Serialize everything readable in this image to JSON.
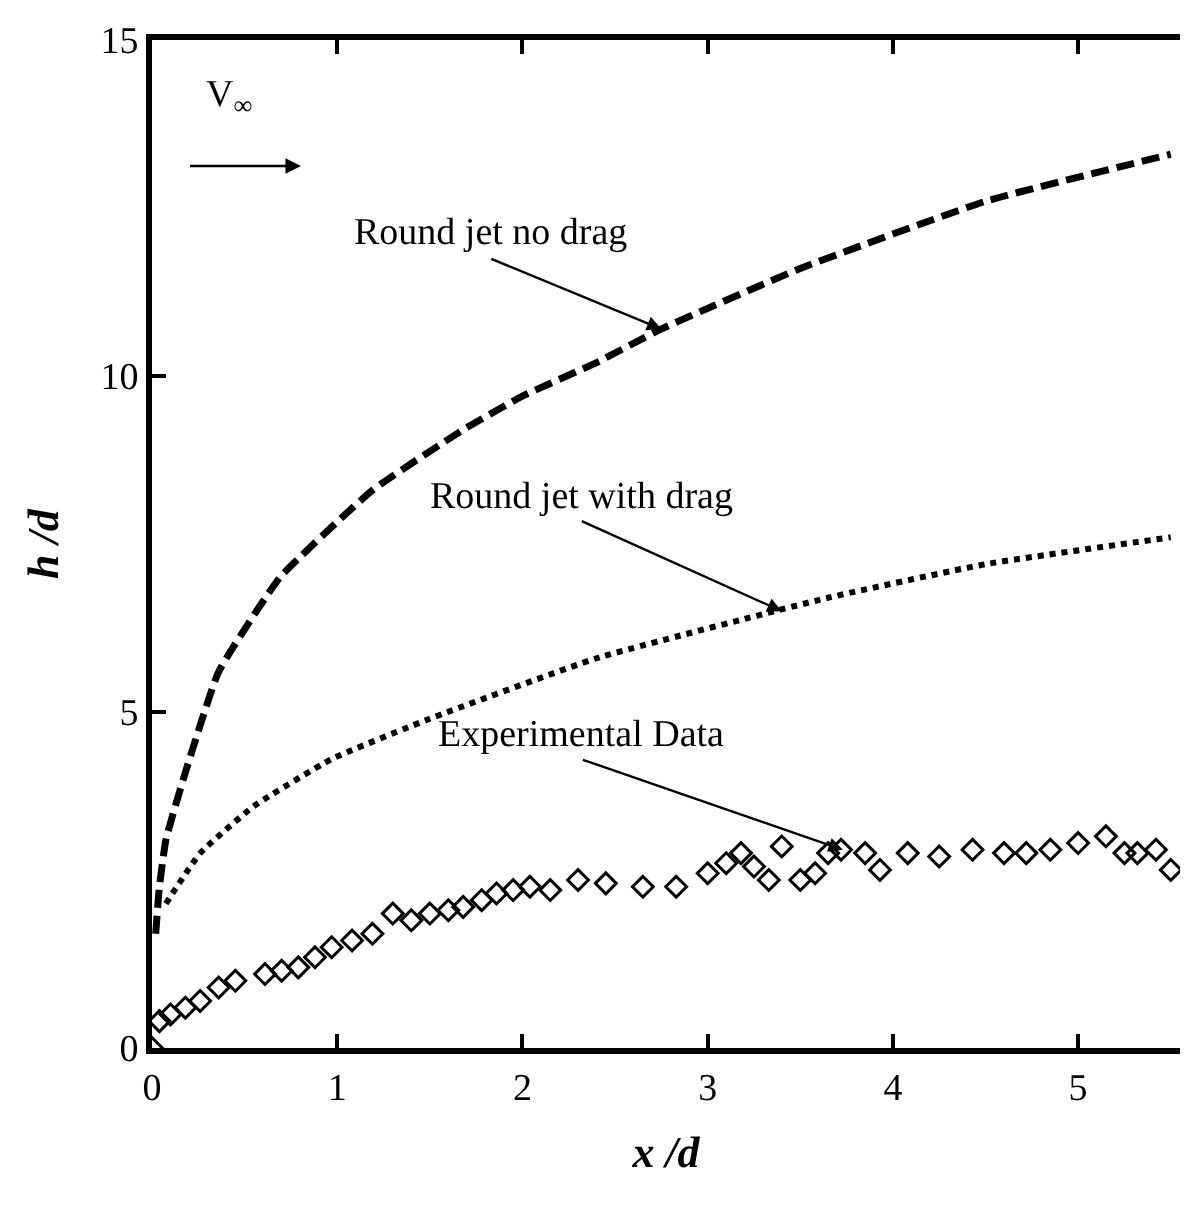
{
  "chart_data": {
    "type": "line",
    "xlabel": "x /d",
    "ylabel": "h /d",
    "xlim": [
      0,
      5.55
    ],
    "xticks": [
      0,
      1,
      2,
      3,
      4,
      5
    ],
    "ylim": [
      0,
      15
    ],
    "yticks": [
      0,
      5,
      10,
      15
    ],
    "series": [
      {
        "line_style": "dashed",
        "marker": "none",
        "color": "#000000",
        "x": [
          0.02,
          0.04,
          0.075,
          0.18,
          0.36,
          0.69,
          1.19,
          1.68,
          2.0,
          2.4,
          2.75,
          3.5,
          4.5,
          5.5
        ],
        "values": [
          1.7,
          2.4,
          3.1,
          4.1,
          5.6,
          7.0,
          8.3,
          9.2,
          9.7,
          10.2,
          10.7,
          11.6,
          12.6,
          13.3
        ]
      },
      {
        "line_style": "dotted",
        "marker": "none",
        "color": "#000000",
        "x": [
          0.075,
          0.26,
          0.55,
          0.97,
          1.5,
          2.4,
          3.65,
          4.5,
          5.5
        ],
        "values": [
          2.15,
          2.9,
          3.6,
          4.3,
          4.9,
          5.8,
          6.7,
          7.2,
          7.6
        ]
      },
      {
        "type": "scatter",
        "marker": "diamond",
        "color": "#000000",
        "x": [
          0,
          0.04,
          0.1,
          0.18,
          0.26,
          0.36,
          0.45,
          0.61,
          0.7,
          0.79,
          0.88,
          0.97,
          1.08,
          1.19,
          1.3,
          1.4,
          1.5,
          1.6,
          1.68,
          1.78,
          1.86,
          1.95,
          2.04,
          2.15,
          2.3,
          2.45,
          2.65,
          2.83,
          3.0,
          3.1,
          3.18,
          3.25,
          3.33,
          3.4,
          3.5,
          3.58,
          3.65,
          3.72,
          3.85,
          3.93,
          4.08,
          4.25,
          4.43,
          4.6,
          4.72,
          4.85,
          5.0,
          5.15,
          5.25,
          5.32,
          5.42,
          5.5
        ],
        "values": [
          0,
          0.4,
          0.5,
          0.6,
          0.7,
          0.9,
          1.0,
          1.1,
          1.15,
          1.2,
          1.35,
          1.5,
          1.6,
          1.7,
          2.0,
          1.9,
          2.0,
          2.05,
          2.1,
          2.2,
          2.3,
          2.35,
          2.4,
          2.35,
          2.5,
          2.45,
          2.4,
          2.4,
          2.6,
          2.75,
          2.9,
          2.7,
          2.5,
          3.0,
          2.5,
          2.6,
          2.9,
          2.95,
          2.9,
          2.65,
          2.9,
          2.85,
          2.95,
          2.9,
          2.9,
          2.95,
          3.05,
          3.15,
          2.9,
          2.9,
          2.95,
          2.65
        ]
      }
    ],
    "annotations": [
      {
        "text": "Round jet no drag",
        "x": 2.75,
        "y": 10.7
      },
      {
        "text": "Round jet with drag",
        "x": 3.4,
        "y": 6.5
      },
      {
        "text": "Experimental Data",
        "x": 3.73,
        "y": 2.95
      },
      "V$_{∞}$"
    ]
  }
}
